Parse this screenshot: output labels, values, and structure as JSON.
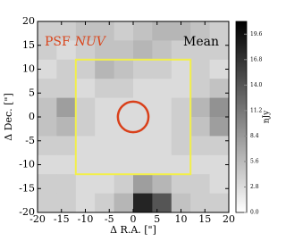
{
  "chart_data": {
    "type": "heatmap",
    "title_prefix": "PSF",
    "title_band": "NUV",
    "label": "Mean",
    "xlabel": "Δ R.A. [\"]",
    "ylabel": "Δ Dec. [\"]",
    "xlim": [
      -20,
      20
    ],
    "ylim": [
      -20,
      20
    ],
    "xticks": [
      -20,
      -15,
      -10,
      -5,
      0,
      5,
      10,
      15,
      20
    ],
    "yticks": [
      -20,
      -15,
      -10,
      -5,
      0,
      5,
      10,
      15,
      20
    ],
    "z": [
      [
        4,
        4,
        5,
        5,
        4,
        5,
        6,
        6,
        5,
        4
      ],
      [
        4,
        3,
        4,
        5,
        5,
        6,
        5,
        4,
        4,
        4
      ],
      [
        3,
        4,
        4,
        6,
        5,
        4,
        4,
        3,
        4,
        3
      ],
      [
        4,
        4,
        3,
        4,
        4,
        3,
        3,
        3,
        4,
        5
      ],
      [
        5,
        8,
        4,
        3,
        3,
        3,
        3,
        4,
        6,
        9
      ],
      [
        5,
        6,
        4,
        3,
        3,
        3,
        3,
        4,
        5,
        8
      ],
      [
        4,
        4,
        3,
        3,
        3,
        3,
        3,
        4,
        4,
        4
      ],
      [
        3,
        3,
        3,
        3,
        3,
        3,
        3,
        3,
        3,
        3
      ],
      [
        4,
        4,
        3,
        3,
        4,
        8,
        6,
        4,
        4,
        3
      ],
      [
        4,
        4,
        3,
        4,
        6,
        18,
        14,
        5,
        4,
        4
      ]
    ],
    "clim": [
      0,
      21
    ],
    "cticks": [
      {
        "value": 0,
        "label": "0.0"
      },
      2.8,
      5.6,
      8.4,
      11.2,
      {
        "value": 14,
        "label": "14.0"
      },
      16.8,
      19.6
    ],
    "clabel": "nJy",
    "box": [
      -12,
      12
    ],
    "box_color": "#f2ef4a",
    "circle": {
      "x": 0,
      "y": 0,
      "r": 3.2
    },
    "circle_color": "#d9401a",
    "title_color": "#d9451c"
  }
}
